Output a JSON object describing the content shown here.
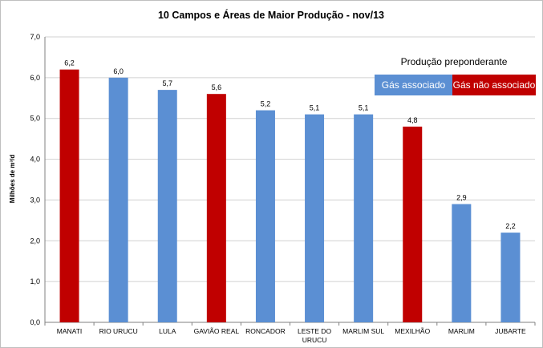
{
  "chart_data": {
    "type": "bar",
    "title": "10 Campos  e Áreas de Maior  Produção  - nov/13",
    "xlabel": "",
    "ylabel": "Milhões de m³/d",
    "ylim": [
      0,
      7
    ],
    "yticks": [
      "0,0",
      "1,0",
      "2,0",
      "3,0",
      "4,0",
      "5,0",
      "6,0",
      "7,0"
    ],
    "grid": true,
    "categories": [
      "MANATI",
      "RIO URUCU",
      "LULA",
      "GAVIÃO REAL",
      "RONCADOR",
      "LESTE DO URUCU",
      "MARLIM SUL",
      "MEXILHÃO",
      "MARLIM",
      "JUBARTE"
    ],
    "values": [
      6.2,
      6.0,
      5.7,
      5.6,
      5.2,
      5.1,
      5.1,
      4.8,
      2.9,
      2.2
    ],
    "value_labels": [
      "6,2",
      "6,0",
      "5,7",
      "5,6",
      "5,2",
      "5,1",
      "5,1",
      "4,8",
      "2,9",
      "2,2"
    ],
    "production_type": [
      "nao_associado",
      "associado",
      "associado",
      "nao_associado",
      "associado",
      "associado",
      "associado",
      "nao_associado",
      "associado",
      "associado"
    ],
    "colors": {
      "associado": "#5b8fd3",
      "nao_associado": "#c00000"
    },
    "legend": {
      "title": "Produção preponderante",
      "placement": "top-right",
      "items": [
        {
          "key": "associado",
          "label": "Gás associado"
        },
        {
          "key": "nao_associado",
          "label": "Gás não associado"
        }
      ]
    }
  }
}
